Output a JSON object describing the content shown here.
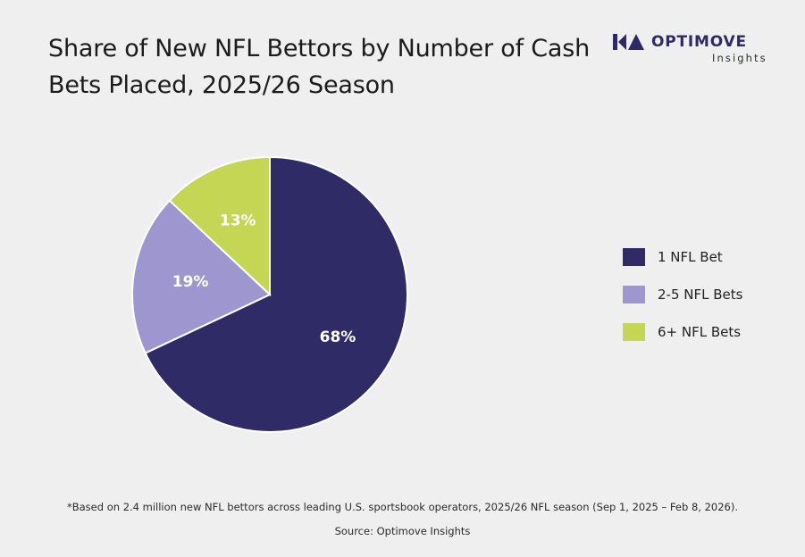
{
  "brand": {
    "name": "OPTIMOVE",
    "sub": "Insights",
    "icon": "optimove-logo-mark",
    "color": "#2d2a65"
  },
  "chart_data": {
    "type": "pie",
    "title": "Share of New NFL Bettors by Number of Cash Bets Placed, 2025/26 Season",
    "slices": [
      {
        "label": "1 NFL Bet",
        "value": 68,
        "display": "68%",
        "color": "#2e2b66"
      },
      {
        "label": "2-5 NFL Bets",
        "value": 19,
        "display": "19%",
        "color": "#9e96cf"
      },
      {
        "label": "6+ NFL Bets",
        "value": 13,
        "display": "13%",
        "color": "#c4d654"
      }
    ],
    "start_angle": "12 o'clock",
    "direction": "clockwise",
    "legend_position": "right"
  },
  "footnote": "*Based on 2.4 million new NFL bettors across leading U.S. sportsbook operators, 2025/26 NFL season (Sep 1, 2025 – Feb 8, 2026).",
  "source": "Source: Optimove Insights"
}
